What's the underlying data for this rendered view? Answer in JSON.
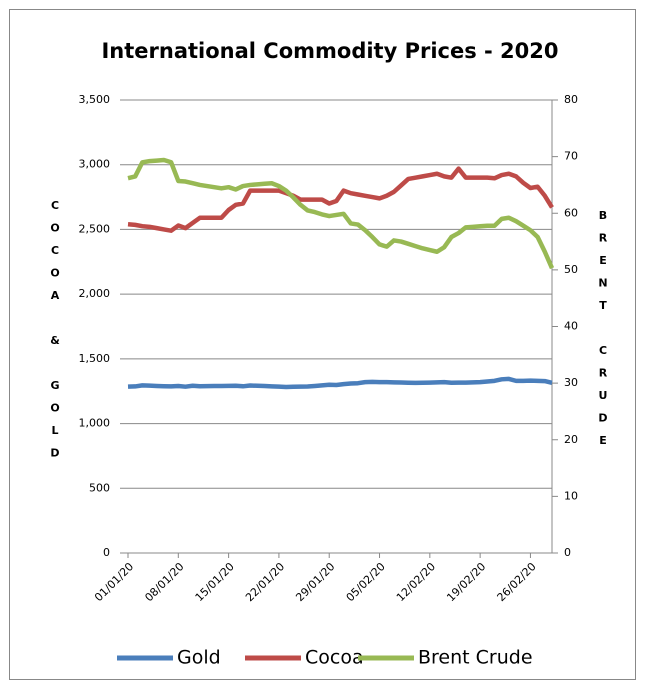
{
  "chart_data": {
    "type": "line",
    "title": "International Commodity Prices - 2020",
    "y_label": "COCOA & GOLD",
    "y2_label": "BRENT CRUDE",
    "categories": [
      "01/01/20",
      null,
      null,
      null,
      null,
      null,
      null,
      "08/01/20",
      null,
      null,
      null,
      null,
      null,
      null,
      "15/01/20",
      null,
      null,
      null,
      null,
      null,
      null,
      "22/01/20",
      null,
      null,
      null,
      null,
      null,
      null,
      "29/01/20",
      null,
      null,
      null,
      null,
      null,
      null,
      "05/02/20",
      null,
      null,
      null,
      null,
      null,
      null,
      "12/02/20",
      null,
      null,
      null,
      null,
      null,
      null,
      "19/02/20",
      null,
      null,
      null,
      null,
      null,
      null,
      "26/02/20",
      null,
      null,
      null
    ],
    "series": [
      {
        "name": "Gold",
        "color": "#4a7ebb",
        "values": [
          1285,
          1287,
          1295,
          1293,
          1290,
          1288,
          1287,
          1290,
          1285,
          1292,
          1288,
          1289,
          1290,
          1290,
          1291,
          1292,
          1288,
          1294,
          1292,
          1290,
          1287,
          1285,
          1283,
          1284,
          1285,
          1286,
          1290,
          1295,
          1300,
          1298,
          1305,
          1310,
          1312,
          1320,
          1322,
          1320,
          1320,
          1318,
          1317,
          1315,
          1314,
          1315,
          1316,
          1318,
          1320,
          1315,
          1316,
          1316,
          1318,
          1320,
          1325,
          1330,
          1342,
          1345,
          1330,
          1330,
          1332,
          1330,
          1328,
          1315
        ]
      },
      {
        "name": "Cocoa",
        "color": "#be4b48",
        "values": [
          2540,
          2535,
          2525,
          2520,
          2510,
          2500,
          2490,
          2530,
          2510,
          2550,
          2590,
          2590,
          2590,
          2590,
          2650,
          2690,
          2700,
          2800,
          2800,
          2800,
          2800,
          2800,
          2780,
          2760,
          2730,
          2730,
          2730,
          2730,
          2700,
          2720,
          2800,
          2780,
          2770,
          2760,
          2750,
          2740,
          2760,
          2790,
          2840,
          2890,
          2900,
          2910,
          2920,
          2930,
          2910,
          2900,
          2970,
          2900,
          2900,
          2900,
          2900,
          2895,
          2920,
          2930,
          2910,
          2860,
          2820,
          2830,
          2760,
          2670
        ]
      },
      {
        "name": "Brent Crude",
        "color": "#98b954",
        "axis": "y2",
        "values": [
          66.2,
          66.5,
          69,
          69.2,
          69.3,
          69.4,
          69,
          65.7,
          65.6,
          65.3,
          65,
          64.8,
          64.6,
          64.4,
          64.6,
          64.2,
          64.8,
          65,
          65.1,
          65.2,
          65.3,
          64.8,
          64,
          62.8,
          61.5,
          60.5,
          60.2,
          59.8,
          59.5,
          59.7,
          59.9,
          58.2,
          58,
          57,
          55.8,
          54.5,
          54.1,
          55.2,
          55,
          54.6,
          54.2,
          53.8,
          53.5,
          53.2,
          54,
          55.8,
          56.5,
          57.5,
          57.6,
          57.7,
          57.8,
          57.8,
          59,
          59.2,
          58.6,
          57.8,
          57,
          55.8,
          53.2,
          50.3
        ]
      }
    ],
    "ylim": [
      0,
      3500
    ],
    "yticks": [
      0,
      500,
      {
        "value": 1000,
        "label": "1,000"
      },
      {
        "value": 1500,
        "label": "1,500"
      },
      {
        "value": 2000,
        "label": "2,000"
      },
      {
        "value": 2500,
        "label": "2,500"
      },
      {
        "value": 3000,
        "label": "3,000"
      },
      {
        "value": 3500,
        "label": "3,500"
      }
    ],
    "y2lim": [
      0,
      80
    ],
    "y2ticks": [
      0,
      10,
      20,
      30,
      40,
      50,
      60,
      70,
      80
    ],
    "grid": true,
    "legend": "bottom"
  }
}
